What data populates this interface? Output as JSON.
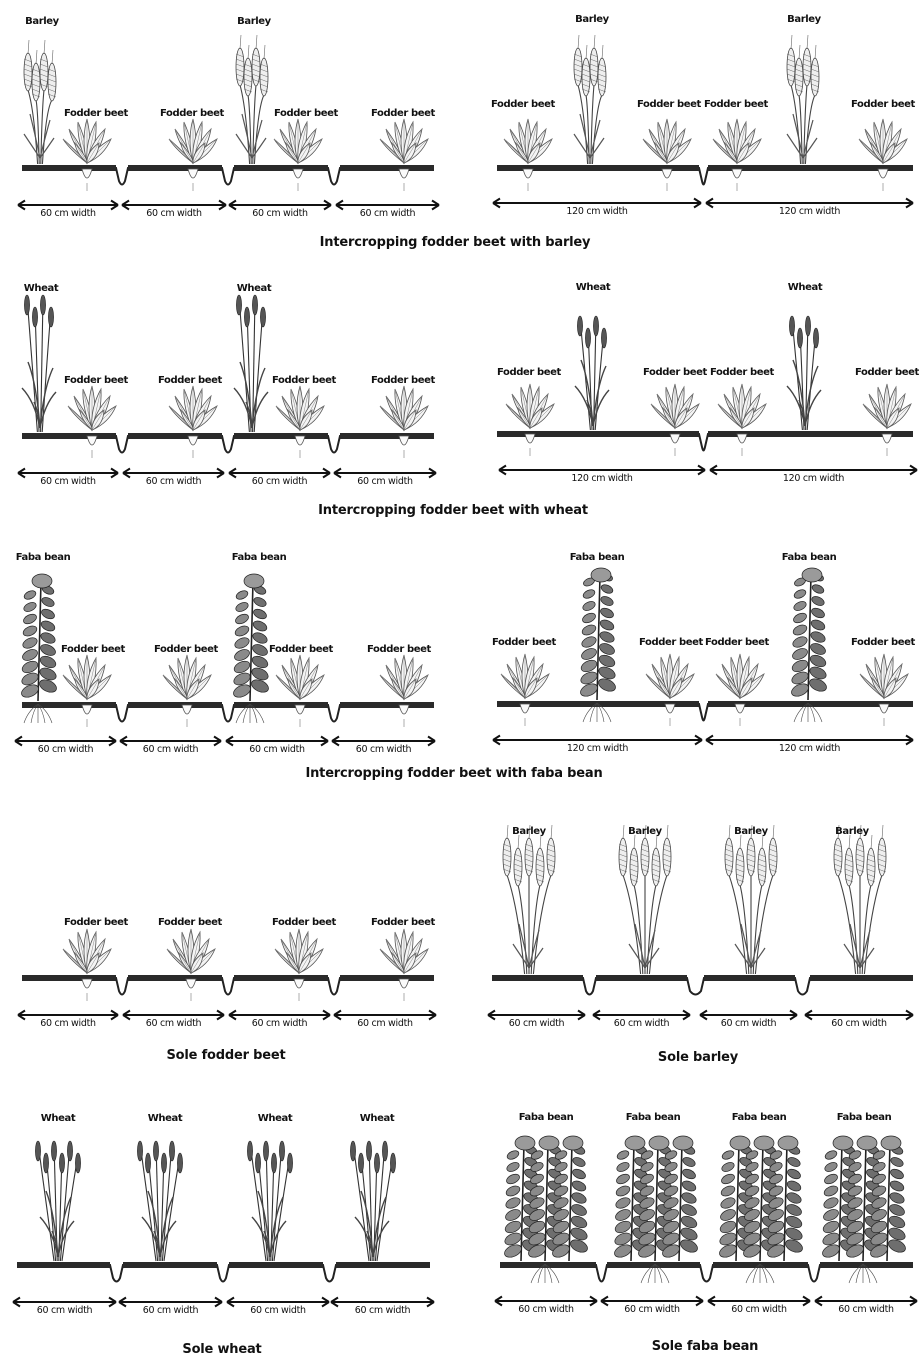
{
  "labels": {
    "barley": "Barley",
    "wheat": "Wheat",
    "faba_bean": "Faba bean",
    "fodder_beet": "Fodder beet",
    "width_60": "60 cm width",
    "width_120": "120 cm width"
  },
  "captions": {
    "barley_intercrop": "Intercropping fodder beet with barley",
    "wheat_intercrop": "Intercropping fodder beet with wheat",
    "faba_intercrop": "Intercropping fodder beet with faba bean",
    "sole_fodder_beet": "Sole fodder beet",
    "sole_barley": "Sole barley",
    "sole_wheat": "Sole wheat",
    "sole_faba_bean": "Sole faba bean"
  },
  "colors": {
    "soil": "#2a2a2a",
    "ink": "#111111",
    "leaf": "#777777"
  }
}
